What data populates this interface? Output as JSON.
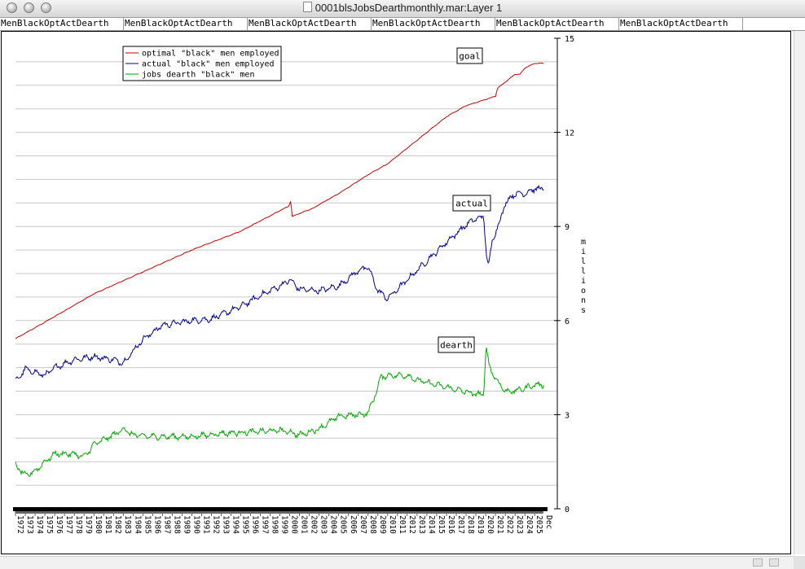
{
  "window": {
    "title": "0001blsJobsDearthmonthly.mar:Layer 1"
  },
  "columns": [
    "MenBlackOptActDearth",
    "MenBlackOptActDearth",
    "MenBlackOptActDearth",
    "MenBlackOptActDearth",
    "MenBlackOptActDearth",
    "MenBlackOptActDearth"
  ],
  "chart_data": {
    "type": "line",
    "title": "",
    "xlabel": "",
    "ylabel": "millions",
    "ylim": [
      0,
      15
    ],
    "yticks": [
      0,
      3,
      6,
      9,
      12,
      15
    ],
    "grid": "horizontal",
    "legend_position": "top-left",
    "x_labels": [
      "1972",
      "1973",
      "1974",
      "1975",
      "1976",
      "1977",
      "1978",
      "1979",
      "1980",
      "1981",
      "1982",
      "1983",
      "1984",
      "1985",
      "1986",
      "1987",
      "1988",
      "1989",
      "1990",
      "1991",
      "1992",
      "1993",
      "1994",
      "1995",
      "1996",
      "1997",
      "1998",
      "1999",
      "2000",
      "2001",
      "2002",
      "2003",
      "2004",
      "2005",
      "2006",
      "2007",
      "2008",
      "2009",
      "2010",
      "2011",
      "2012",
      "2013",
      "2014",
      "2015",
      "2016",
      "2017",
      "2018",
      "2019",
      "2020",
      "2021",
      "2022",
      "2023",
      "2024",
      "2025",
      "Dec"
    ],
    "series": [
      {
        "name": "optimal \"black\" men employed",
        "label": "goal",
        "color": "#cc0000",
        "points": [
          [
            1972,
            5.42
          ],
          [
            1975,
            5.95
          ],
          [
            1980,
            6.85
          ],
          [
            1985,
            7.55
          ],
          [
            1990,
            8.25
          ],
          [
            1995,
            8.85
          ],
          [
            1999.9,
            9.65
          ],
          [
            2000.1,
            9.82
          ],
          [
            2000.25,
            9.32
          ],
          [
            2002.5,
            9.6
          ],
          [
            2003,
            9.7
          ],
          [
            2005,
            10.05
          ],
          [
            2008,
            10.65
          ],
          [
            2010,
            11.0
          ],
          [
            2013,
            11.75
          ],
          [
            2016,
            12.5
          ],
          [
            2018,
            12.85
          ],
          [
            2020,
            13.05
          ],
          [
            2021,
            13.15
          ],
          [
            2021.2,
            13.4
          ],
          [
            2023,
            13.85
          ],
          [
            2023.5,
            13.85
          ],
          [
            2024,
            14.05
          ],
          [
            2025,
            14.2
          ]
        ]
      },
      {
        "name": "actual \"black\" men employed",
        "label": "actual",
        "color": "#000099",
        "points": [
          [
            1972,
            4.05
          ],
          [
            1973,
            4.45
          ],
          [
            1974,
            4.35
          ],
          [
            1975,
            4.25
          ],
          [
            1976,
            4.5
          ],
          [
            1978,
            4.75
          ],
          [
            1980,
            4.85
          ],
          [
            1982,
            4.75
          ],
          [
            1983,
            4.65
          ],
          [
            1985,
            5.4
          ],
          [
            1987,
            5.85
          ],
          [
            1990,
            6.0
          ],
          [
            1992,
            6.05
          ],
          [
            1995,
            6.45
          ],
          [
            1997,
            6.8
          ],
          [
            1999,
            7.1
          ],
          [
            2000,
            7.3
          ],
          [
            2001,
            7.0
          ],
          [
            2003,
            6.95
          ],
          [
            2005,
            7.1
          ],
          [
            2007,
            7.6
          ],
          [
            2008,
            7.7
          ],
          [
            2009,
            6.95
          ],
          [
            2010,
            6.7
          ],
          [
            2011,
            7.0
          ],
          [
            2013,
            7.6
          ],
          [
            2015,
            8.2
          ],
          [
            2016,
            8.5
          ],
          [
            2018,
            9.05
          ],
          [
            2019,
            9.25
          ],
          [
            2019.8,
            9.3
          ],
          [
            2020.05,
            8.2
          ],
          [
            2020.3,
            7.7
          ],
          [
            2020.7,
            8.6
          ],
          [
            2021.5,
            9.2
          ],
          [
            2022,
            9.75
          ],
          [
            2023,
            10.05
          ],
          [
            2024,
            10.05
          ],
          [
            2025,
            10.2
          ]
        ]
      },
      {
        "name": "jobs dearth \"black\" men",
        "label": "dearth",
        "color": "#00aa00",
        "points": [
          [
            1972,
            1.4
          ],
          [
            1973,
            1.05
          ],
          [
            1974,
            1.2
          ],
          [
            1975,
            1.5
          ],
          [
            1976,
            1.75
          ],
          [
            1978,
            1.75
          ],
          [
            1979,
            1.65
          ],
          [
            1980,
            2.05
          ],
          [
            1982,
            2.35
          ],
          [
            1983,
            2.55
          ],
          [
            1984,
            2.35
          ],
          [
            1986,
            2.3
          ],
          [
            1990,
            2.3
          ],
          [
            1993,
            2.4
          ],
          [
            1996,
            2.45
          ],
          [
            1999,
            2.5
          ],
          [
            2000,
            2.45
          ],
          [
            2001,
            2.35
          ],
          [
            2003,
            2.55
          ],
          [
            2005,
            2.95
          ],
          [
            2007,
            3.0
          ],
          [
            2008,
            3.05
          ],
          [
            2008.8,
            3.7
          ],
          [
            2009.3,
            4.2
          ],
          [
            2010,
            4.25
          ],
          [
            2012,
            4.25
          ],
          [
            2013,
            4.1
          ],
          [
            2015,
            3.95
          ],
          [
            2017,
            3.8
          ],
          [
            2019,
            3.65
          ],
          [
            2019.8,
            3.65
          ],
          [
            2020.05,
            5.25
          ],
          [
            2020.3,
            4.6
          ],
          [
            2021,
            4.15
          ],
          [
            2022,
            3.75
          ],
          [
            2023,
            3.75
          ],
          [
            2024,
            3.85
          ],
          [
            2025,
            3.95
          ]
        ]
      }
    ]
  }
}
